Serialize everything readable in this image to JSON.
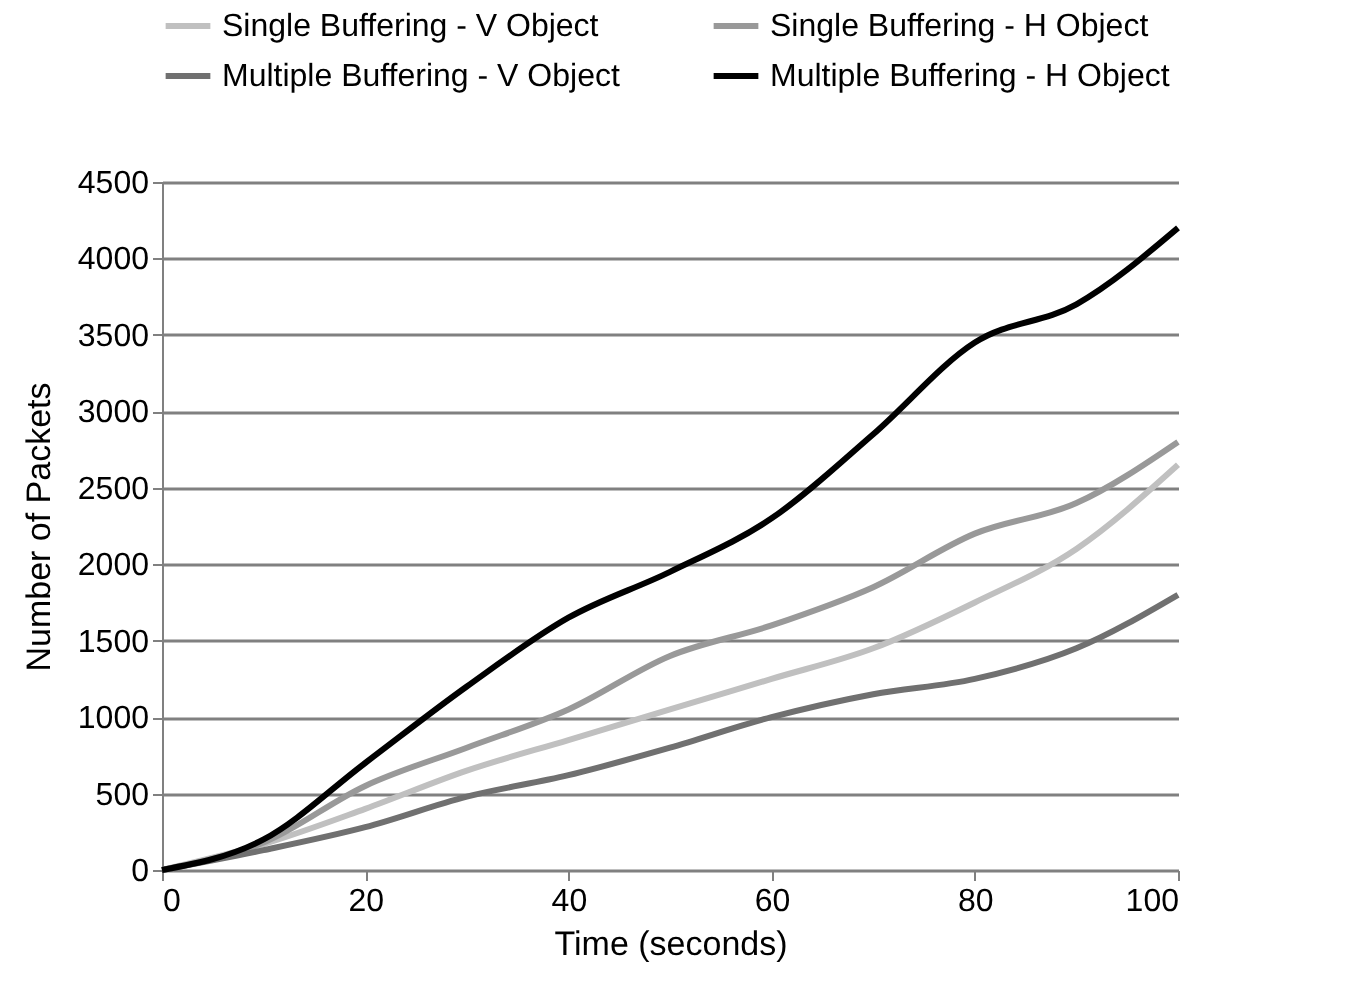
{
  "chart_data": {
    "type": "line",
    "xlabel": "Time (seconds)",
    "ylabel": "Number of Packets",
    "x": [
      0,
      10,
      20,
      30,
      40,
      50,
      60,
      70,
      80,
      90,
      100
    ],
    "series": [
      {
        "name": "Single Buffering - V Object",
        "color": "#c0c0c0",
        "values": [
          0,
          170,
          400,
          650,
          850,
          1050,
          1250,
          1450,
          1750,
          2100,
          2650
        ]
      },
      {
        "name": "Single Buffering - H Object",
        "color": "#999999",
        "values": [
          0,
          180,
          550,
          800,
          1050,
          1400,
          1600,
          1850,
          2200,
          2400,
          2800
        ]
      },
      {
        "name": "Multiple Buffering - V Object",
        "color": "#707070",
        "values": [
          0,
          130,
          280,
          480,
          620,
          800,
          1000,
          1150,
          1250,
          1450,
          1800
        ]
      },
      {
        "name": "Multiple Buffering - H Object",
        "color": "#000000",
        "values": [
          0,
          200,
          700,
          1200,
          1650,
          1950,
          2300,
          2850,
          3450,
          3700,
          4200
        ]
      }
    ],
    "xlim": [
      0,
      100
    ],
    "xticks": [
      0,
      20,
      40,
      60,
      80,
      100
    ],
    "ylim": [
      0,
      4500
    ],
    "yticks": [
      0,
      500,
      1000,
      1500,
      2000,
      2500,
      3000,
      3500,
      4000,
      4500
    ],
    "grid": "y",
    "legend": "top",
    "marker": "none",
    "line_style": "solid"
  }
}
